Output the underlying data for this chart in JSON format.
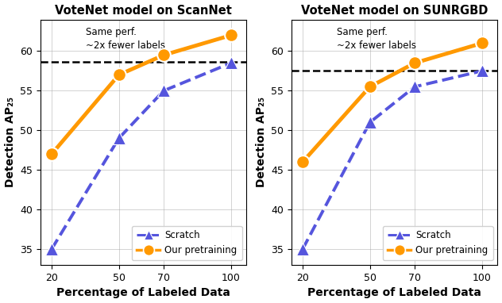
{
  "scannet": {
    "title": "VoteNet model on ScanNet",
    "x": [
      20,
      50,
      70,
      100
    ],
    "scratch": [
      35.0,
      49.0,
      55.0,
      58.5
    ],
    "pretrain": [
      47.0,
      57.0,
      59.5,
      62.0
    ],
    "dashed_line": 58.6,
    "annotation_line1": "Same perf.",
    "annotation_line2": "~2x fewer labels"
  },
  "sunrgbd": {
    "title": "VoteNet model on SUNRGBD",
    "x": [
      20,
      50,
      70,
      100
    ],
    "scratch": [
      35.0,
      51.0,
      55.5,
      57.5
    ],
    "pretrain": [
      46.0,
      55.5,
      58.5,
      61.0
    ],
    "dashed_line": 57.5,
    "annotation_line1": "Same perf.",
    "annotation_line2": "~2x fewer labels"
  },
  "xlabel": "Percentage of Labeled Data",
  "ylabel": "Detection AP₂₅",
  "ylim": [
    33,
    64
  ],
  "xlim": [
    15,
    107
  ],
  "scratch_color": "#5555dd",
  "pretrain_color": "#ff9900",
  "scratch_label": "Scratch",
  "pretrain_label": "Our pretraining",
  "grid_color": "#aaaaaa",
  "xticks": [
    20,
    50,
    70,
    100
  ],
  "yticks": [
    35,
    40,
    45,
    50,
    55,
    60
  ]
}
